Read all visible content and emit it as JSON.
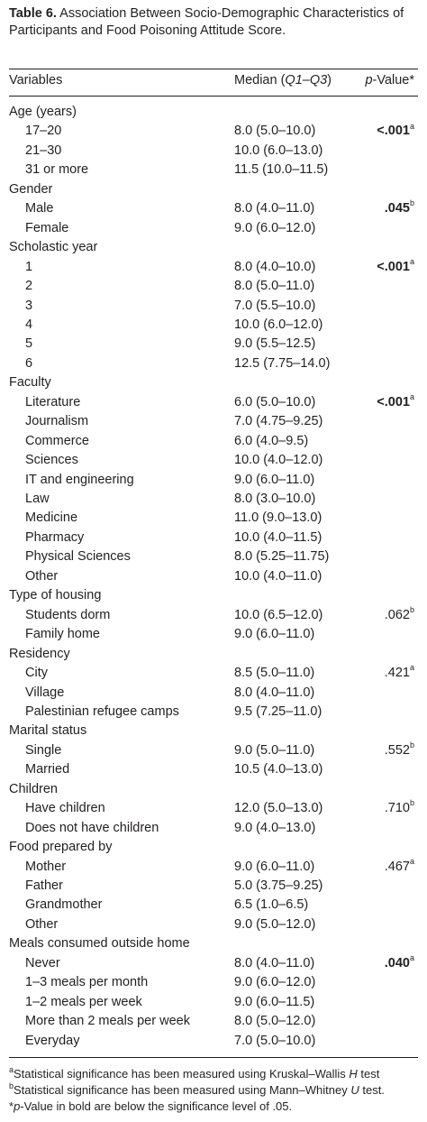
{
  "caption": {
    "number": "Table 6.",
    "title": "Association Between Socio-Demographic Characteristics of Participants and Food Poisoning Attitude Score."
  },
  "header": {
    "variables": "Variables",
    "median": "Median",
    "quartiles": "Q1–Q3",
    "p_symbol": "p",
    "pvalue_suffix": "-Value*"
  },
  "rows": [
    {
      "label": "Age (years)",
      "type": "group"
    },
    {
      "label": "17–20",
      "median": "8.0 (5.0–10.0)",
      "p": "<.001",
      "sup": "a",
      "bold": true
    },
    {
      "label": "21–30",
      "median": "10.0 (6.0–13.0)"
    },
    {
      "label": "31 or more",
      "median": "11.5 (10.0–11.5)"
    },
    {
      "label": "Gender",
      "type": "group"
    },
    {
      "label": "Male",
      "median": "8.0 (4.0–11.0)",
      "p": ".045",
      "sup": "b",
      "bold": true
    },
    {
      "label": "Female",
      "median": "9.0 (6.0–12.0)"
    },
    {
      "label": "Scholastic year",
      "type": "group"
    },
    {
      "label": "1",
      "median": "8.0 (4.0–10.0)",
      "p": "<.001",
      "sup": "a",
      "bold": true
    },
    {
      "label": "2",
      "median": "8.0 (5.0–11.0)"
    },
    {
      "label": "3",
      "median": "7.0 (5.5–10.0)"
    },
    {
      "label": "4",
      "median": "10.0 (6.0–12.0)"
    },
    {
      "label": "5",
      "median": "9.0 (5.5–12.5)"
    },
    {
      "label": "6",
      "median": "12.5 (7.75–14.0)"
    },
    {
      "label": "Faculty",
      "type": "group"
    },
    {
      "label": "Literature",
      "median": "6.0 (5.0–10.0)",
      "p": "<.001",
      "sup": "a",
      "bold": true
    },
    {
      "label": "Journalism",
      "median": "7.0 (4.75–9.25)"
    },
    {
      "label": "Commerce",
      "median": "6.0 (4.0–9.5)"
    },
    {
      "label": "Sciences",
      "median": "10.0 (4.0–12.0)"
    },
    {
      "label": "IT and engineering",
      "median": "9.0 (6.0–11.0)"
    },
    {
      "label": "Law",
      "median": "8.0 (3.0–10.0)"
    },
    {
      "label": "Medicine",
      "median": "11.0 (9.0–13.0)"
    },
    {
      "label": "Pharmacy",
      "median": "10.0 (4.0–11.5)"
    },
    {
      "label": "Physical Sciences",
      "median": "8.0 (5.25–11.75)"
    },
    {
      "label": "Other",
      "median": "10.0 (4.0–11.0)"
    },
    {
      "label": "Type of housing",
      "type": "group"
    },
    {
      "label": "Students dorm",
      "median": "10.0 (6.5–12.0)",
      "p": ".062",
      "sup": "b",
      "bold": false
    },
    {
      "label": "Family home",
      "median": "9.0 (6.0–11.0)"
    },
    {
      "label": "Residency",
      "type": "group"
    },
    {
      "label": "City",
      "median": "8.5 (5.0–11.0)",
      "p": ".421",
      "sup": "a",
      "bold": false
    },
    {
      "label": "Village",
      "median": "8.0 (4.0–11.0)"
    },
    {
      "label": "Palestinian refugee camps",
      "median": "9.5 (7.25–11.0)"
    },
    {
      "label": "Marital status",
      "type": "group"
    },
    {
      "label": "Single",
      "median": "9.0 (5.0–11.0)",
      "p": ".552",
      "sup": "b",
      "bold": false
    },
    {
      "label": "Married",
      "median": "10.5 (4.0–13.0)"
    },
    {
      "label": "Children",
      "type": "group"
    },
    {
      "label": "Have children",
      "median": "12.0 (5.0–13.0)",
      "p": ".710",
      "sup": "b",
      "bold": false
    },
    {
      "label": "Does not have children",
      "median": "9.0 (4.0–13.0)"
    },
    {
      "label": "Food prepared by",
      "type": "group"
    },
    {
      "label": "Mother",
      "median": "9.0 (6.0–11.0)",
      "p": ".467",
      "sup": "a",
      "bold": false
    },
    {
      "label": "Father",
      "median": "5.0 (3.75–9.25)"
    },
    {
      "label": "Grandmother",
      "median": "6.5 (1.0–6.5)"
    },
    {
      "label": "Other",
      "median": "9.0 (5.0–12.0)"
    },
    {
      "label": "Meals consumed outside home",
      "type": "group"
    },
    {
      "label": "Never",
      "median": "8.0 (4.0–11.0)",
      "p": ".040",
      "sup": "a",
      "bold": true
    },
    {
      "label": "1–3 meals per month",
      "median": "9.0 (6.0–12.0)"
    },
    {
      "label": "1–2 meals per week",
      "median": "9.0 (6.0–11.5)"
    },
    {
      "label": "More than 2 meals per week",
      "median": "8.0 (5.0–12.0)"
    },
    {
      "label": "Everyday",
      "median": "7.0 (5.0–10.0)"
    }
  ],
  "footnotes": [
    {
      "mark": "a",
      "text": "Statistical significance has been measured using Kruskal–Wallis ",
      "italic": "H",
      "tail": " test"
    },
    {
      "mark": "b",
      "text": "Statistical significance has been measured using Mann–Whitney ",
      "italic": "U",
      "tail": " test."
    },
    {
      "mark": "*",
      "italic": "p",
      "text": "-Value in bold are below the significance level of .05."
    }
  ]
}
